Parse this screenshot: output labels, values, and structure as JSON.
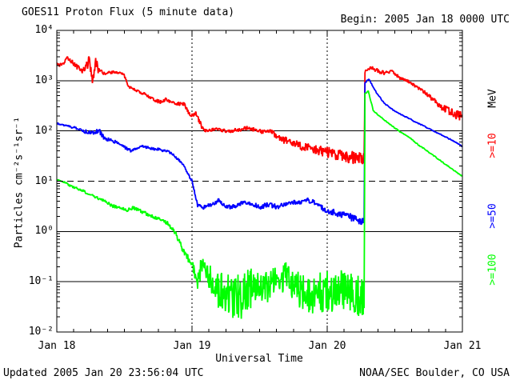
{
  "header": {
    "title": "GOES11 Proton Flux (5 minute data)",
    "begin_label": "Begin: 2005 Jan 18 0000 UTC"
  },
  "footer": {
    "updated": "Updated 2005 Jan 20 23:56:04 UTC",
    "source": "NOAA/SEC Boulder, CO USA"
  },
  "chart_data": {
    "type": "line",
    "title": "GOES11 Proton Flux (5 minute data)",
    "xlabel": "Universal Time",
    "ylabel": "Particles cm⁻²s⁻¹sr⁻¹",
    "y_scale": "log10",
    "ylim_log": [
      -2,
      4
    ],
    "y_tick_labels": [
      "10⁴",
      "10³",
      "10²",
      "10¹",
      "10⁰",
      "10⁻¹",
      "10⁻²"
    ],
    "y_tick_decades": [
      4,
      3,
      2,
      1,
      0,
      -1,
      -2
    ],
    "x_hours_range": [
      0,
      72
    ],
    "x_day_labels": [
      "Jan 18",
      "Jan 19",
      "Jan 20",
      "Jan 21"
    ],
    "x_minor_tick_hours": 3,
    "solid_gridlines_log": [
      3,
      2,
      0,
      -1
    ],
    "dashed_gridlines_log": [
      1
    ],
    "dotted_vlines_hours": [
      24,
      48
    ],
    "frame_color": "#000000",
    "legend": {
      "units": "MeV",
      "entries": [
        {
          "label": ">=10",
          "color": "#ff0000"
        },
        {
          "label": ">=50",
          "color": "#0000ff"
        },
        {
          "label": ">=100",
          "color": "#00ff00"
        }
      ]
    },
    "point_format": "[hours_since_begin, flux, noise_dex_to_next_point]",
    "series": [
      {
        "id": "ge10",
        "name": ">=10 MeV",
        "color": "#ff0000",
        "points": [
          [
            0,
            2100,
            0.04
          ],
          [
            1,
            2000,
            0.04
          ],
          [
            1.9,
            2900,
            0.05
          ],
          [
            3.6,
            1900,
            0.06
          ],
          [
            4.6,
            1550,
            0.06
          ],
          [
            5.3,
            2100,
            0.12
          ],
          [
            5.9,
            2400,
            0.14
          ],
          [
            6.4,
            950,
            0.1
          ],
          [
            6.9,
            2300,
            0.1
          ],
          [
            7.6,
            1500,
            0.05
          ],
          [
            8.4,
            1400,
            0.03
          ],
          [
            10.5,
            1500,
            0.03
          ],
          [
            11.9,
            1300,
            0.03
          ],
          [
            12.8,
            760,
            0.03
          ],
          [
            14,
            640,
            0.03
          ],
          [
            16.2,
            500,
            0.04
          ],
          [
            18.3,
            370,
            0.04
          ],
          [
            19.3,
            430,
            0.04
          ],
          [
            20.5,
            360,
            0.04
          ],
          [
            22.6,
            340,
            0.04
          ],
          [
            23.7,
            200,
            0.04
          ],
          [
            24.7,
            215,
            0.05
          ],
          [
            26.1,
            102,
            0.04
          ],
          [
            28,
            108,
            0.04
          ],
          [
            30,
            100,
            0.045
          ],
          [
            32,
            103,
            0.045
          ],
          [
            34,
            115,
            0.045
          ],
          [
            36,
            98,
            0.05
          ],
          [
            38,
            96,
            0.06
          ],
          [
            40,
            68,
            0.08
          ],
          [
            42,
            55,
            0.09
          ],
          [
            44,
            48,
            0.1
          ],
          [
            46,
            42,
            0.11
          ],
          [
            48,
            38,
            0.12
          ],
          [
            50,
            33,
            0.12
          ],
          [
            52,
            30,
            0.13
          ],
          [
            54.55,
            28,
            0.13
          ],
          [
            54.7,
            1500,
            0.03
          ],
          [
            55.5,
            1800,
            0.045
          ],
          [
            56.5,
            1650,
            0.045
          ],
          [
            58.1,
            1400,
            0.035
          ],
          [
            59.5,
            1570,
            0.035
          ],
          [
            61,
            1100,
            0.035
          ],
          [
            62.4,
            970,
            0.035
          ],
          [
            63.8,
            760,
            0.04
          ],
          [
            65.3,
            590,
            0.045
          ],
          [
            66.7,
            435,
            0.05
          ],
          [
            68.1,
            310,
            0.07
          ],
          [
            69.5,
            255,
            0.09
          ],
          [
            70.9,
            210,
            0.1
          ],
          [
            72,
            190,
            0
          ]
        ]
      },
      {
        "id": "ge50",
        "name": ">=50 MeV",
        "color": "#0000ff",
        "points": [
          [
            0,
            140,
            0.02
          ],
          [
            2,
            125,
            0.025
          ],
          [
            3.5,
            113,
            0.03
          ],
          [
            5,
            98,
            0.05
          ],
          [
            6.5,
            95,
            0.05
          ],
          [
            7.5,
            100,
            0.05
          ],
          [
            8.4,
            72,
            0.04
          ],
          [
            10.5,
            60,
            0.035
          ],
          [
            12.6,
            43,
            0.035
          ],
          [
            13.3,
            40,
            0.03
          ],
          [
            15,
            51,
            0.03
          ],
          [
            17,
            44,
            0.03
          ],
          [
            18.5,
            42,
            0.03
          ],
          [
            20,
            38,
            0.03
          ],
          [
            21.5,
            28,
            0.03
          ],
          [
            22.6,
            20,
            0.03
          ],
          [
            24,
            10,
            0.03
          ],
          [
            25,
            3.3,
            0.04
          ],
          [
            26,
            3.0,
            0.05
          ],
          [
            27.5,
            3.4,
            0.05
          ],
          [
            28.7,
            4.2,
            0.05
          ],
          [
            30,
            3.0,
            0.06
          ],
          [
            31.5,
            3.1,
            0.06
          ],
          [
            33,
            3.8,
            0.05
          ],
          [
            34.5,
            3.6,
            0.05
          ],
          [
            36,
            3.1,
            0.06
          ],
          [
            37.5,
            3.3,
            0.06
          ],
          [
            39.5,
            3.2,
            0.05
          ],
          [
            41,
            3.6,
            0.05
          ],
          [
            43,
            3.8,
            0.05
          ],
          [
            44.5,
            4.2,
            0.05
          ],
          [
            45.5,
            3.9,
            0.05
          ],
          [
            47,
            3.0,
            0.06
          ],
          [
            48,
            2.6,
            0.07
          ],
          [
            51,
            2.1,
            0.08
          ],
          [
            53,
            1.8,
            0.08
          ],
          [
            54.55,
            1.5,
            0.08
          ],
          [
            54.7,
            900,
            0.01
          ],
          [
            55.4,
            1080,
            0.012
          ],
          [
            56.7,
            590,
            0.012
          ],
          [
            58.1,
            360,
            0.012
          ],
          [
            59.5,
            270,
            0.012
          ],
          [
            61,
            215,
            0.012
          ],
          [
            62.4,
            180,
            0.012
          ],
          [
            63.8,
            148,
            0.012
          ],
          [
            65.3,
            123,
            0.012
          ],
          [
            66.7,
            102,
            0.012
          ],
          [
            68.1,
            85,
            0.012
          ],
          [
            69.5,
            71,
            0.012
          ],
          [
            70.9,
            59,
            0.012
          ],
          [
            72,
            49,
            0
          ]
        ]
      },
      {
        "id": "ge100",
        "name": ">=100 MeV",
        "color": "#00ff00",
        "points": [
          [
            0,
            10.5,
            0.02
          ],
          [
            1.5,
            9.5,
            0.03
          ],
          [
            2.5,
            8.0,
            0.03
          ],
          [
            4,
            7.0,
            0.03
          ],
          [
            5.5,
            5.8,
            0.03
          ],
          [
            7,
            4.8,
            0.03
          ],
          [
            8.5,
            4.0,
            0.035
          ],
          [
            10,
            3.2,
            0.035
          ],
          [
            11.5,
            2.8,
            0.04
          ],
          [
            12.5,
            2.6,
            0.04
          ],
          [
            13.5,
            3.0,
            0.04
          ],
          [
            15,
            2.5,
            0.04
          ],
          [
            16.5,
            2.1,
            0.04
          ],
          [
            18,
            1.8,
            0.04
          ],
          [
            19.5,
            1.5,
            0.04
          ],
          [
            20.9,
            1.0,
            0.05
          ],
          [
            22,
            0.55,
            0.07
          ],
          [
            22.6,
            0.37,
            0.08
          ],
          [
            24,
            0.22,
            0.12
          ],
          [
            25,
            0.1,
            0.2
          ],
          [
            25.7,
            0.21,
            0.2
          ],
          [
            27,
            0.12,
            0.3
          ],
          [
            28.5,
            0.07,
            0.38
          ],
          [
            30,
            0.06,
            0.45
          ],
          [
            32,
            0.05,
            0.48
          ],
          [
            34,
            0.065,
            0.44
          ],
          [
            36,
            0.08,
            0.36
          ],
          [
            38,
            0.09,
            0.32
          ],
          [
            40,
            0.11,
            0.3
          ],
          [
            41,
            0.13,
            0.28
          ],
          [
            42,
            0.08,
            0.36
          ],
          [
            44,
            0.06,
            0.42
          ],
          [
            46,
            0.05,
            0.46
          ],
          [
            48,
            0.065,
            0.44
          ],
          [
            50,
            0.075,
            0.4
          ],
          [
            52,
            0.06,
            0.42
          ],
          [
            54.55,
            0.05,
            0.35
          ],
          [
            54.7,
            550,
            0.01
          ],
          [
            55.3,
            620,
            0.012
          ],
          [
            56.2,
            250,
            0.012
          ],
          [
            58,
            170,
            0.012
          ],
          [
            60,
            115,
            0.012
          ],
          [
            61,
            95,
            0.012
          ],
          [
            62.5,
            75,
            0.012
          ],
          [
            64,
            55,
            0.012
          ],
          [
            66,
            38,
            0.012
          ],
          [
            68,
            26,
            0.012
          ],
          [
            70,
            18,
            0.012
          ],
          [
            71,
            15,
            0.012
          ],
          [
            72,
            12.5,
            0
          ]
        ]
      }
    ]
  }
}
